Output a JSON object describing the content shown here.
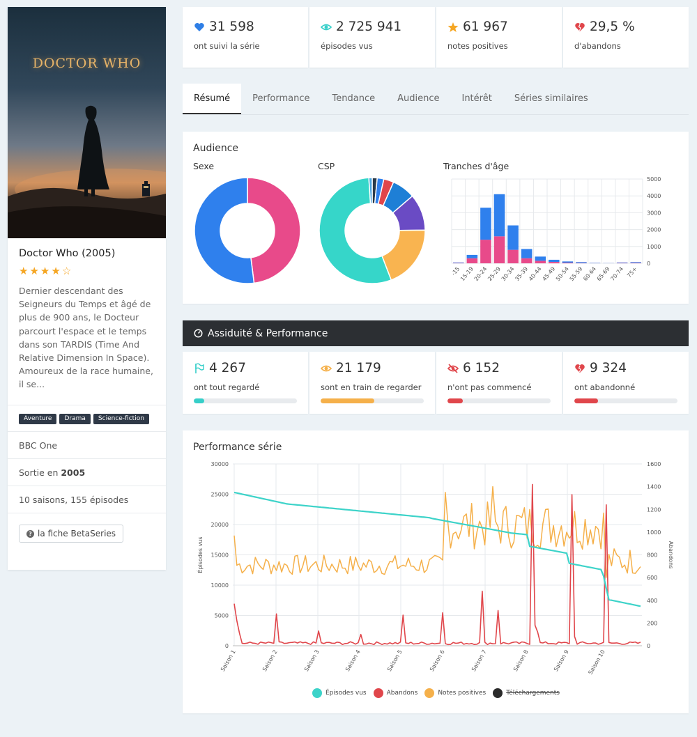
{
  "show": {
    "title": "Doctor Who (2005)",
    "poster_title": "DOCTOR WHO",
    "rating_stars": 4,
    "description": "Dernier descendant des Seigneurs du Temps et âgé de plus de 900 ans, le Docteur parcourt l'espace et le temps dans son TARDIS (Time And Relative Dimension In Space). Amoureux de la race humaine, il se...",
    "genres": [
      "Aventure",
      "Drama",
      "Science-fiction"
    ],
    "network": "BBC One",
    "release_prefix": "Sortie en ",
    "release_year": "2005",
    "seasons": "10 saisons, 155 épisodes",
    "betaseries_button": "la fiche BetaSeries"
  },
  "stats": [
    {
      "value": "31 598",
      "label": "ont suivi la série",
      "icon": "heart-icon",
      "color": "#2f7fe6"
    },
    {
      "value": "2 725 941",
      "label": "épisodes vus",
      "icon": "eye-icon",
      "color": "#36cfc9"
    },
    {
      "value": "61 967",
      "label": "notes positives",
      "icon": "star-icon",
      "color": "#f5a623"
    },
    {
      "value": "29,5 %",
      "label": "d'abandons",
      "icon": "broken-heart-icon",
      "color": "#e0464b"
    }
  ],
  "tabs": [
    "Résumé",
    "Performance",
    "Tendance",
    "Audience",
    "Intérêt",
    "Séries similaires"
  ],
  "audience": {
    "title": "Audience",
    "sexe_label": "Sexe",
    "csp_label": "CSP",
    "age_label": "Tranches d'âge"
  },
  "assiduite": {
    "title": "Assiduité & Performance",
    "items": [
      {
        "value": "4 267",
        "label": "ont tout regardé",
        "icon": "flag-icon",
        "color": "#36cfc9",
        "progress": 0.1
      },
      {
        "value": "21 179",
        "label": "sont en train de regarder",
        "icon": "eye-icon",
        "color": "#f5b04a",
        "progress": 0.52
      },
      {
        "value": "6 152",
        "label": "n'ont pas commencé",
        "icon": "eye-slash-icon",
        "color": "#e0464b",
        "progress": 0.15
      },
      {
        "value": "9 324",
        "label": "ont abandonné",
        "icon": "broken-heart-icon",
        "color": "#e0464b",
        "progress": 0.23
      }
    ]
  },
  "performance": {
    "title": "Performance série",
    "left_axis_label": "Épisodes vus",
    "right_axis_label": "Abandons",
    "legend": [
      "Épisodes vus",
      "Abandons",
      "Notes positives",
      "Téléchargements"
    ]
  },
  "chart_data": [
    {
      "type": "pie",
      "title": "Sexe",
      "slices": [
        {
          "value": 52,
          "color": "#2f80ed"
        },
        {
          "value": 48,
          "color": "#e84a8a"
        }
      ]
    },
    {
      "type": "pie",
      "title": "CSP",
      "slices": [
        {
          "value": 54,
          "color": "#36d6c9"
        },
        {
          "value": 19,
          "color": "#f9b450"
        },
        {
          "value": 11,
          "color": "#6a4bc4"
        },
        {
          "value": 7,
          "color": "#1e7fd6"
        },
        {
          "value": 3,
          "color": "#e0464b"
        },
        {
          "value": 2,
          "color": "#2f80ed"
        },
        {
          "value": 1.5,
          "color": "#2b3a4a"
        },
        {
          "value": 1,
          "color": "#4aa3df"
        }
      ]
    },
    {
      "type": "bar",
      "title": "Tranches d'âge",
      "categories": [
        "-15",
        "15-19",
        "20-24",
        "25-29",
        "30-34",
        "35-39",
        "40-44",
        "45-49",
        "50-54",
        "55-59",
        "60-64",
        "65-69",
        "70-74",
        "75+"
      ],
      "series": [
        {
          "color": "#e84a8a",
          "values": [
            20,
            300,
            1400,
            1600,
            800,
            300,
            150,
            80,
            40,
            20,
            10,
            5,
            20,
            30
          ]
        },
        {
          "color": "#2f80ed",
          "values": [
            30,
            200,
            1900,
            2500,
            1450,
            550,
            250,
            130,
            70,
            50,
            20,
            10,
            30,
            40
          ]
        }
      ],
      "stacked": true,
      "ylim": [
        0,
        5000
      ],
      "yticks": [
        0,
        1000,
        2000,
        3000,
        4000,
        5000
      ],
      "y_axis_side": "right",
      "grid": true
    },
    {
      "type": "line",
      "title": "Performance série",
      "xlabel": "",
      "ylabel": "Épisodes vus",
      "y2label": "Abandons",
      "x_labels": [
        "Saison 1",
        "Saison 2",
        "Saison 3",
        "Saison 4",
        "Saison 5",
        "Saison 6",
        "Saison 7",
        "Saison 8",
        "Saison 9",
        "Saison 10"
      ],
      "ylim": [
        0,
        30000
      ],
      "yticks": [
        0,
        5000,
        10000,
        15000,
        20000,
        25000,
        30000
      ],
      "y2lim": [
        0,
        1600
      ],
      "y2ticks": [
        0,
        200,
        400,
        600,
        800,
        1000,
        1200,
        1400,
        1600
      ],
      "series": [
        {
          "name": "Épisodes vus",
          "color": "#3dd3c9",
          "axis": "left"
        },
        {
          "name": "Abandons",
          "color": "#e0464b",
          "axis": "right"
        },
        {
          "name": "Notes positives",
          "color": "#f5b04a",
          "axis": "right"
        },
        {
          "name": "Téléchargements",
          "color": "#2b2b2b",
          "axis": "right",
          "hidden": true
        }
      ]
    }
  ]
}
